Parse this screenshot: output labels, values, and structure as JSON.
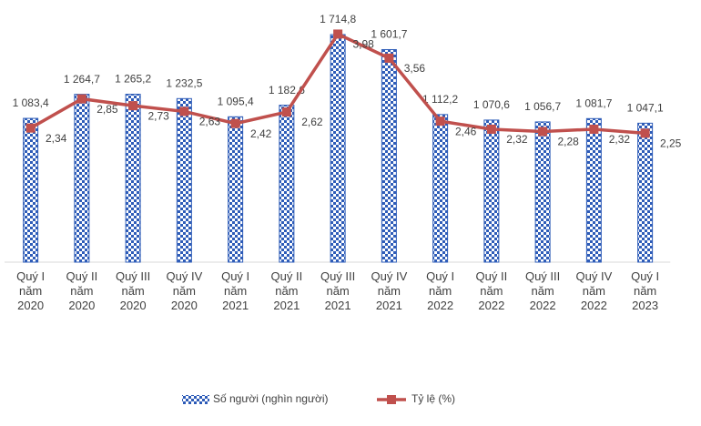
{
  "chart_data": {
    "type": "bar-line",
    "categories": [
      "Quý I\nnăm\n2020",
      "Quý II\nnăm\n2020",
      "Quý III\nnăm\n2020",
      "Quý IV\nnăm\n2020",
      "Quý I\nnăm\n2021",
      "Quý II\nnăm\n2021",
      "Quý III\nnăm\n2021",
      "Quý IV\nnăm\n2021",
      "Quý I\nnăm\n2022",
      "Quý II\nnăm\n2022",
      "Quý III\nnăm\n2022",
      "Quý IV\nnăm\n2022",
      "Quý I\nnăm\n2023"
    ],
    "series": [
      {
        "name": "Số người (nghìn người)",
        "type": "bar",
        "color": "#2e5cb8",
        "values": [
          1083.4,
          1264.7,
          1265.2,
          1232.5,
          1095.4,
          1182.6,
          1714.8,
          1601.7,
          1112.2,
          1070.6,
          1056.7,
          1081.7,
          1047.1
        ],
        "value_labels": [
          "1 083,4",
          "1 264,7",
          "1 265,2",
          "1 232,5",
          "1 095,4",
          "1 182,6",
          "1 714,8",
          "1 601,7",
          "1 112,2",
          "1 070,6",
          "1 056,7",
          "1 081,7",
          "1 047,1"
        ]
      },
      {
        "name": "Tỷ lệ (%)",
        "type": "line",
        "axis": "y2",
        "color": "#c0504d",
        "values": [
          2.34,
          2.85,
          2.73,
          2.63,
          2.42,
          2.62,
          3.98,
          3.56,
          2.46,
          2.32,
          2.28,
          2.32,
          2.25
        ],
        "value_labels": [
          "2,34",
          "2,85",
          "2,73",
          "2,63",
          "2,42",
          "2,62",
          "3,98",
          "3,56",
          "2,46",
          "2,32",
          "2,28",
          "2,32",
          "2,25"
        ]
      }
    ],
    "ylim": [
      0,
      1900
    ],
    "y2lim": [
      0,
      4.4
    ],
    "legend": "bottom"
  }
}
